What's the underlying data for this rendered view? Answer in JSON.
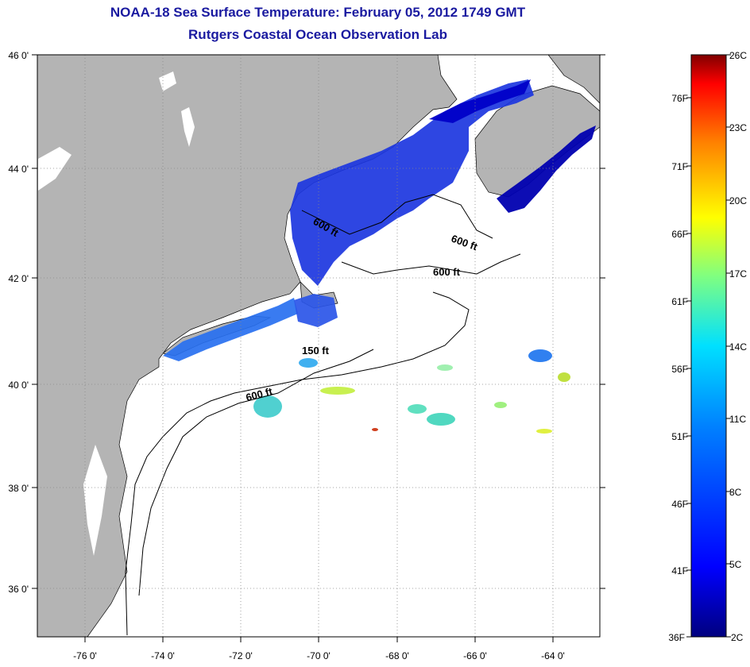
{
  "title": {
    "line1": "NOAA-18 Sea Surface Temperature:  February 05, 2012 1749 GMT",
    "line2": "Rutgers Coastal Ocean Observation Lab"
  },
  "map": {
    "lat_labels": [
      "46 0'",
      "44 0'",
      "42 0'",
      "40 0'",
      "38 0'",
      "36 0'"
    ],
    "lat_values": [
      46,
      44,
      42,
      40,
      38,
      36
    ],
    "lon_labels": [
      "-76 0'",
      "-74 0'",
      "-72 0'",
      "-70 0'",
      "-68 0'",
      "-66 0'",
      "-64 0'"
    ],
    "lon_values": [
      -76,
      -74,
      -72,
      -70,
      -68,
      -66,
      -64
    ],
    "lat_range": [
      35,
      46.1
    ],
    "lon_range": [
      -77,
      -62.5
    ],
    "contour_labels": [
      "600 ft",
      "600 ft",
      "600 ft",
      "150 ft",
      "600 ft"
    ],
    "colors": {
      "land": "#b4b4b4",
      "ocean": "#ffffff",
      "grid": "#888888"
    }
  },
  "colorbar": {
    "celsius_labels": [
      "26C",
      "23C",
      "20C",
      "17C",
      "14C",
      "11C",
      "8C",
      "5C",
      "2C"
    ],
    "fahrenheit_labels": [
      "76F",
      "71F",
      "66F",
      "61F",
      "56F",
      "51F",
      "46F",
      "41F",
      "36F"
    ],
    "range_celsius": [
      2,
      26
    ],
    "colors": [
      "#00008f",
      "#0000ff",
      "#0080ff",
      "#00ffff",
      "#80ff80",
      "#ffff00",
      "#ff8000",
      "#ff0000",
      "#800000"
    ]
  }
}
